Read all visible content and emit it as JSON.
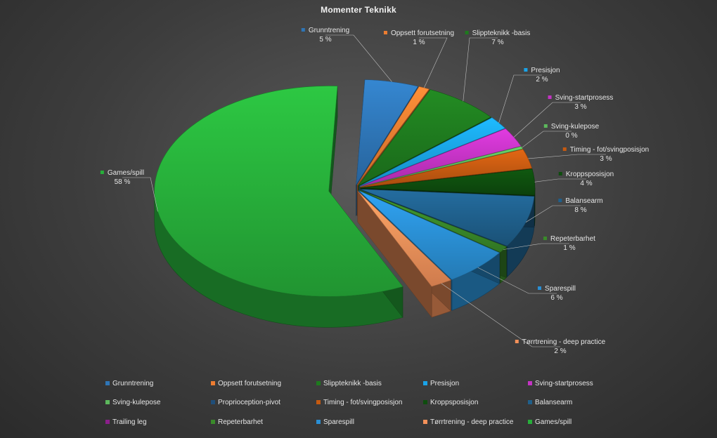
{
  "chart_data": {
    "type": "pie",
    "title": "Momenter Teknikk",
    "style": "3d-exploded",
    "legend_position": "bottom",
    "slices": [
      {
        "name": "Grunntrening",
        "value": 5,
        "label": "5 %",
        "color": "#2e75b6"
      },
      {
        "name": "Oppsett forutsetning",
        "value": 1,
        "label": "1 %",
        "color": "#ed7d31"
      },
      {
        "name": "Slippteknikk -basis",
        "value": 7,
        "label": "7 %",
        "color": "#1e7a1e"
      },
      {
        "name": "Presisjon",
        "value": 2,
        "label": "2 %",
        "color": "#1aa3e8"
      },
      {
        "name": "Sving-startprosess",
        "value": 3,
        "label": "3 %",
        "color": "#c433c4"
      },
      {
        "name": "Sving-kulepose",
        "value": 0.4,
        "label": "0 %",
        "color": "#5cb85c"
      },
      {
        "name": "Proprioception-pivot",
        "value": 0,
        "label": "",
        "color": "#1f4e79"
      },
      {
        "name": "Timing - fot/svingposisjon",
        "value": 3,
        "label": "3 %",
        "color": "#c55a11"
      },
      {
        "name": "Kroppsposisjon",
        "value": 4,
        "label": "4 %",
        "color": "#0e4d0e"
      },
      {
        "name": "Balansearm",
        "value": 8,
        "label": "8 %",
        "color": "#1f5f8b"
      },
      {
        "name": "Trailing leg",
        "value": 0,
        "label": "",
        "color": "#8b1f8b"
      },
      {
        "name": "Repeterbarhet",
        "value": 1,
        "label": "1 %",
        "color": "#3a8a2a"
      },
      {
        "name": "Sparespill",
        "value": 6,
        "label": "6 %",
        "color": "#2a8fd4"
      },
      {
        "name": "Tørrtrening - deep practice",
        "value": 2,
        "label": "2 %",
        "color": "#f4915a"
      },
      {
        "name": "Games/spill",
        "value": 58,
        "label": "58 %",
        "color": "#27ae3a"
      }
    ]
  }
}
